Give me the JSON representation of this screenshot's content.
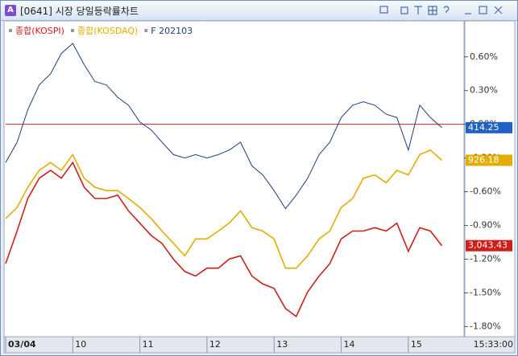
{
  "window": {
    "title": "[0641] 시장 당일등락률차트",
    "icon": "A"
  },
  "chart_data": {
    "type": "line",
    "legend": "top-left",
    "grid": false,
    "hline": 0,
    "hline_color": "#cc2222",
    "time_label": "15:33:00",
    "x": [
      9,
      9.17,
      9.33,
      9.5,
      9.67,
      9.83,
      10,
      10.17,
      10.33,
      10.5,
      10.67,
      10.83,
      11,
      11.17,
      11.33,
      11.5,
      11.67,
      11.83,
      12,
      12.17,
      12.33,
      12.5,
      12.67,
      12.83,
      13,
      13.17,
      13.33,
      13.5,
      13.67,
      13.83,
      14,
      14.17,
      14.33,
      14.5,
      14.67,
      14.83,
      15,
      15.17,
      15.33,
      15.5
    ],
    "xlim": [
      9,
      15.83
    ],
    "xticks": [
      {
        "value": 9,
        "label": "03/04"
      },
      10,
      11,
      12,
      13,
      14,
      15
    ],
    "ylim": [
      -1.89,
      0.92
    ],
    "yticks": [
      {
        "value": 0.6,
        "label": "0.60%"
      },
      {
        "value": 0.3,
        "label": "0.30%"
      },
      {
        "value": 0,
        "label": "0.00%"
      },
      {
        "value": -0.3,
        "label": "-0.30%"
      },
      {
        "value": -0.6,
        "label": "-0.60%"
      },
      {
        "value": -0.9,
        "label": "-0.90%"
      },
      {
        "value": -1.2,
        "label": "-1.20%"
      },
      {
        "value": -1.5,
        "label": "-1.50%"
      },
      {
        "value": -1.8,
        "label": "-1.80%"
      }
    ],
    "series": [
      {
        "name": "종합(KOSPI)",
        "color": "#cc1f1a",
        "last_label": "3,043.43",
        "values": [
          -1.24,
          -0.95,
          -0.66,
          -0.48,
          -0.41,
          -0.48,
          -0.34,
          -0.56,
          -0.66,
          -0.66,
          -0.63,
          -0.77,
          -0.88,
          -0.99,
          -1.06,
          -1.2,
          -1.31,
          -1.35,
          -1.28,
          -1.28,
          -1.2,
          -1.17,
          -1.35,
          -1.42,
          -1.46,
          -1.64,
          -1.71,
          -1.49,
          -1.35,
          -1.24,
          -1.02,
          -0.95,
          -0.95,
          -0.92,
          -0.95,
          -0.88,
          -1.13,
          -0.92,
          -0.95,
          -1.08
        ]
      },
      {
        "name": "종합(KOSDAQ)",
        "color": "#e3ad00",
        "last_label": "926.18",
        "values": [
          -0.84,
          -0.74,
          -0.56,
          -0.41,
          -0.34,
          -0.41,
          -0.27,
          -0.48,
          -0.56,
          -0.59,
          -0.59,
          -0.66,
          -0.74,
          -0.84,
          -0.95,
          -1.06,
          -1.17,
          -1.02,
          -1.02,
          -0.95,
          -0.88,
          -0.77,
          -0.92,
          -0.95,
          -1.02,
          -1.28,
          -1.28,
          -1.17,
          -1.02,
          -0.95,
          -0.74,
          -0.66,
          -0.48,
          -0.45,
          -0.52,
          -0.41,
          -0.45,
          -0.27,
          -0.23,
          -0.32
        ]
      },
      {
        "name": "F 202103",
        "color": "#1c3f7a",
        "last_label": "414.25",
        "label_color": "#1f62c4",
        "values": [
          -0.34,
          -0.16,
          0.13,
          0.35,
          0.45,
          0.63,
          0.72,
          0.53,
          0.38,
          0.35,
          0.24,
          0.17,
          0.02,
          -0.05,
          -0.16,
          -0.27,
          -0.3,
          -0.27,
          -0.3,
          -0.27,
          -0.23,
          -0.16,
          -0.37,
          -0.45,
          -0.59,
          -0.75,
          -0.63,
          -0.48,
          -0.27,
          -0.16,
          0.06,
          0.17,
          0.2,
          0.17,
          0.09,
          0.06,
          -0.23,
          0.17,
          0.06,
          -0.03
        ]
      }
    ]
  }
}
